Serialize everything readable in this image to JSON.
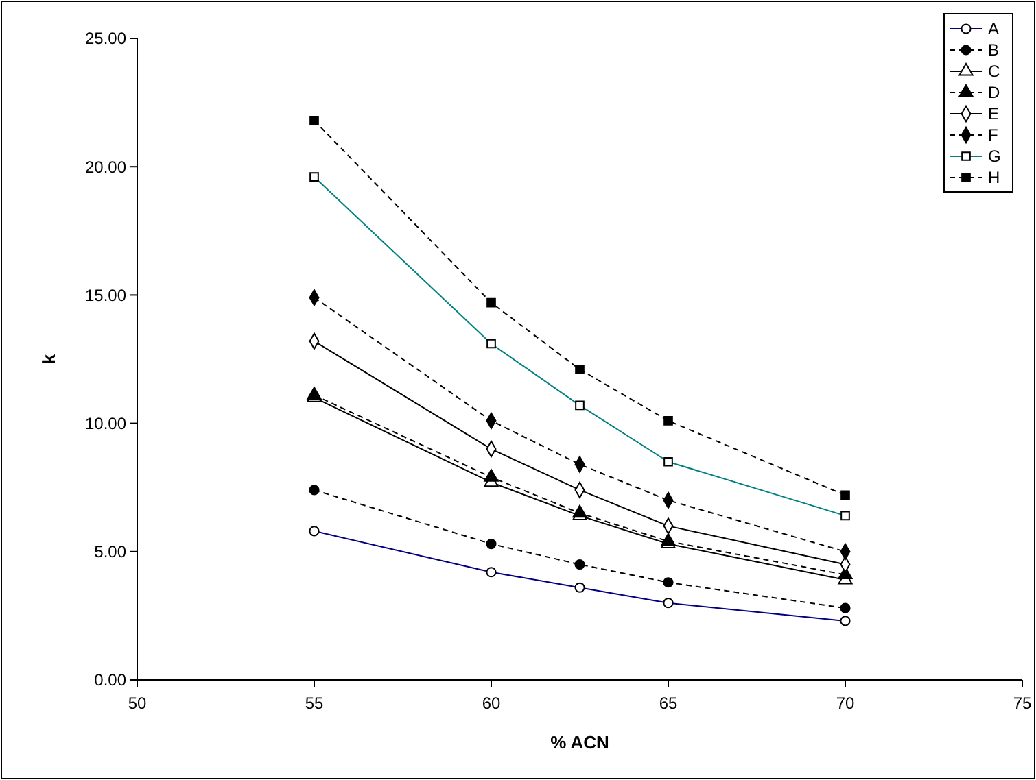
{
  "chart_data": {
    "type": "line",
    "xlabel": "% ACN",
    "ylabel": "k",
    "x": [
      55,
      60,
      62.5,
      65,
      70
    ],
    "xlim": [
      50,
      75
    ],
    "xticks": [
      50,
      55,
      60,
      65,
      70,
      75
    ],
    "ylim": [
      0,
      25
    ],
    "yticks": [
      {
        "value": 0,
        "label": "0.00"
      },
      {
        "value": 5,
        "label": "5.00"
      },
      {
        "value": 10,
        "label": "10.00"
      },
      {
        "value": 15,
        "label": "15.00"
      },
      {
        "value": 20,
        "label": "20.00"
      },
      {
        "value": 25,
        "label": "25.00"
      }
    ],
    "grid": false,
    "legend": "top right",
    "series": [
      {
        "name": "A",
        "color": "#000080",
        "marker": "circle",
        "line_style": "solid",
        "values": [
          5.8,
          4.2,
          3.6,
          3.0,
          2.3
        ]
      },
      {
        "name": "B",
        "color": "#000000",
        "marker": "circle",
        "line_style": "dashed",
        "values": [
          7.4,
          5.3,
          4.5,
          3.8,
          2.8
        ]
      },
      {
        "name": "C",
        "color": "#000000",
        "marker": "triangle",
        "line_style": "solid",
        "values": [
          11.0,
          7.7,
          6.4,
          5.3,
          3.9
        ]
      },
      {
        "name": "D",
        "color": "#000000",
        "marker": "triangle",
        "line_style": "dashed",
        "values": [
          11.1,
          7.9,
          6.5,
          5.4,
          4.1
        ]
      },
      {
        "name": "E",
        "color": "#000000",
        "marker": "diamond",
        "line_style": "solid",
        "values": [
          13.2,
          9.0,
          7.4,
          6.0,
          4.5
        ]
      },
      {
        "name": "F",
        "color": "#000000",
        "marker": "diamond",
        "line_style": "dashed",
        "values": [
          14.9,
          10.1,
          8.4,
          7.0,
          5.0
        ]
      },
      {
        "name": "G",
        "color": "#008080",
        "marker": "square",
        "line_style": "solid",
        "values": [
          19.6,
          13.1,
          10.7,
          8.5,
          6.4
        ]
      },
      {
        "name": "H",
        "color": "#000000",
        "marker": "square",
        "line_style": "dashed",
        "values": [
          21.8,
          14.7,
          12.1,
          10.1,
          7.2
        ]
      }
    ]
  }
}
